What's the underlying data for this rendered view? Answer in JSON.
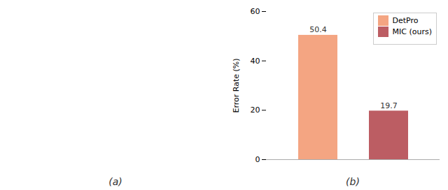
{
  "chart_data": {
    "type": "bar",
    "categories": [
      "DetPro",
      "MIC (ours)"
    ],
    "values": [
      50.4,
      19.7
    ],
    "colors": [
      "#F4A582",
      "#BC5D63"
    ],
    "ylabel": "Error Rate (%)",
    "ylim": [
      0,
      60
    ],
    "yticks": [
      0,
      20,
      40,
      60
    ],
    "annotations": [
      "(a)",
      "(b)"
    ],
    "data_labels": true,
    "legend": "upper right",
    "tick_labels": "y",
    "grid": false
  }
}
